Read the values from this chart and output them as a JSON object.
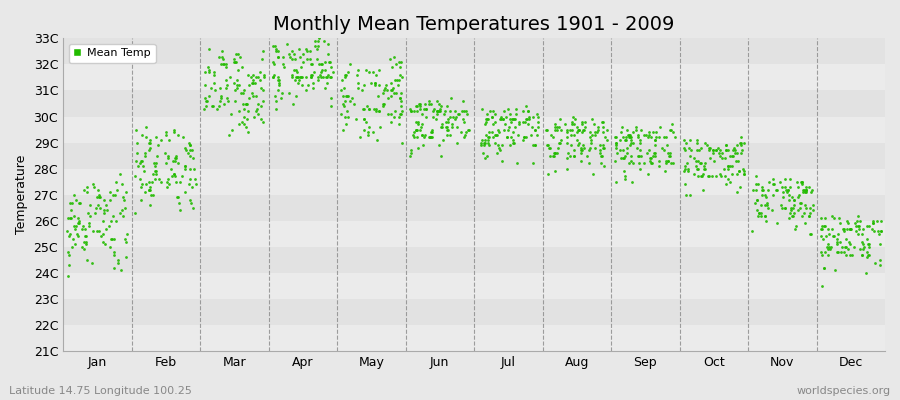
{
  "title": "Monthly Mean Temperatures 1901 - 2009",
  "ylabel": "Temperature",
  "xlabel_labels": [
    "Jan",
    "Feb",
    "Mar",
    "Apr",
    "May",
    "Jun",
    "Jul",
    "Aug",
    "Sep",
    "Oct",
    "Nov",
    "Dec"
  ],
  "ytick_labels": [
    "21C",
    "22C",
    "23C",
    "24C",
    "25C",
    "26C",
    "27C",
    "28C",
    "29C",
    "30C",
    "31C",
    "32C",
    "33C"
  ],
  "ytick_values": [
    21,
    22,
    23,
    24,
    25,
    26,
    27,
    28,
    29,
    30,
    31,
    32,
    33
  ],
  "legend_label": "Mean Temp",
  "dot_color": "#22bb00",
  "band_color_light": "#ebebeb",
  "band_color_dark": "#e0e0e0",
  "background_color": "#e8e8e8",
  "footnote_left": "Latitude 14.75 Longitude 100.25",
  "footnote_right": "worldspecies.org",
  "ylim": [
    21,
    33
  ],
  "title_fontsize": 14,
  "axis_fontsize": 9,
  "footnote_fontsize": 8,
  "monthly_mean_temps": {
    "Jan": [
      26.2,
      26.5,
      25.3,
      26.0,
      25.8,
      26.8,
      25.5,
      27.8,
      26.3,
      25.0,
      24.8,
      25.2,
      24.5,
      26.7,
      25.4,
      26.1,
      25.7,
      26.9,
      25.6,
      27.2,
      26.4,
      25.1,
      24.9,
      25.8,
      26.3,
      27.0,
      25.9,
      26.6,
      25.2,
      24.7,
      26.8,
      25.5,
      26.1,
      25.3,
      27.1,
      26.0,
      25.4,
      26.7,
      25.8,
      27.3,
      26.2,
      25.6,
      24.3,
      26.9,
      25.7,
      26.4,
      25.1,
      27.0,
      26.5,
      25.9,
      24.6,
      25.3,
      26.8,
      27.4,
      25.5,
      26.2,
      25.0,
      26.7,
      25.4,
      27.1,
      26.6,
      25.8,
      24.4,
      26.3,
      25.2,
      26.9,
      25.7,
      27.5,
      26.1,
      25.5,
      24.2,
      26.0,
      25.6,
      27.2,
      26.8,
      25.3,
      24.8,
      26.4,
      25.9,
      27.0,
      26.3,
      25.1,
      24.5,
      26.7,
      25.4,
      27.3,
      26.0,
      25.7,
      24.1,
      26.5,
      25.8,
      27.1,
      26.2,
      25.4,
      24.7,
      26.9,
      25.6,
      27.4,
      26.1,
      25.3,
      23.9,
      26.6,
      25.2,
      27.2,
      26.4,
      25.0,
      24.4,
      27.0
    ],
    "Feb": [
      27.5,
      28.2,
      27.0,
      28.5,
      27.3,
      28.8,
      27.8,
      29.0,
      28.1,
      27.4,
      26.8,
      27.6,
      27.1,
      28.9,
      27.9,
      28.3,
      27.2,
      29.1,
      28.0,
      28.6,
      27.7,
      28.2,
      27.5,
      28.7,
      27.4,
      29.2,
      28.4,
      28.1,
      27.3,
      26.9,
      28.5,
      27.6,
      28.0,
      27.2,
      29.3,
      28.2,
      27.8,
      29.0,
      28.3,
      29.4,
      28.1,
      27.5,
      26.7,
      28.8,
      27.9,
      28.6,
      27.4,
      29.1,
      28.5,
      27.7,
      26.6,
      27.5,
      28.9,
      29.5,
      27.8,
      28.4,
      27.3,
      28.7,
      27.6,
      29.2,
      28.6,
      28.0,
      26.9,
      28.3,
      27.5,
      29.0,
      27.7,
      29.6,
      28.2,
      27.6,
      26.5,
      28.1,
      27.8,
      29.3,
      28.7,
      27.4,
      27.0,
      28.4,
      28.1,
      29.1,
      28.5,
      27.3,
      26.8,
      28.7,
      27.6,
      29.4,
      28.2,
      27.9,
      26.4,
      28.5,
      28.0,
      29.2,
      28.3,
      27.6,
      27.1,
      28.9,
      27.7,
      29.5,
      28.3,
      27.5,
      26.3,
      28.6,
      27.4,
      29.3,
      28.4,
      27.2,
      26.7,
      29.0
    ],
    "Mar": [
      30.5,
      31.2,
      30.0,
      31.5,
      30.3,
      31.8,
      30.8,
      32.0,
      31.1,
      30.4,
      29.8,
      30.6,
      30.1,
      31.9,
      30.9,
      31.3,
      30.2,
      32.1,
      31.0,
      31.6,
      30.7,
      31.2,
      30.5,
      31.7,
      30.4,
      32.2,
      31.4,
      31.1,
      30.3,
      29.9,
      31.5,
      30.6,
      31.0,
      30.2,
      32.3,
      31.2,
      30.8,
      32.0,
      31.3,
      32.4,
      31.1,
      30.5,
      29.7,
      31.8,
      30.9,
      31.6,
      30.4,
      32.1,
      31.5,
      30.7,
      29.6,
      30.5,
      31.9,
      32.5,
      30.8,
      31.4,
      30.3,
      31.7,
      30.6,
      32.2,
      31.6,
      31.0,
      29.9,
      31.3,
      30.5,
      32.0,
      30.7,
      32.6,
      31.2,
      30.6,
      29.5,
      31.1,
      30.8,
      32.3,
      31.7,
      30.4,
      30.0,
      31.4,
      31.1,
      32.1,
      31.5,
      30.3,
      29.8,
      31.7,
      30.6,
      32.4,
      31.2,
      30.9,
      29.4,
      31.5,
      31.0,
      32.2,
      31.3,
      30.6,
      30.1,
      31.9,
      30.7,
      32.5,
      31.3,
      30.5,
      29.3,
      31.6,
      30.4,
      32.3,
      31.4,
      30.2,
      29.7,
      32.0
    ],
    "Apr": [
      31.5,
      32.2,
      31.0,
      32.5,
      31.3,
      32.8,
      31.8,
      33.0,
      32.1,
      31.4,
      30.8,
      31.6,
      31.1,
      32.9,
      31.9,
      32.3,
      31.2,
      31.5,
      32.0,
      32.6,
      31.7,
      32.2,
      31.5,
      32.7,
      31.4,
      31.5,
      32.4,
      32.1,
      31.3,
      30.9,
      32.5,
      31.6,
      32.0,
      31.2,
      31.5,
      32.2,
      31.8,
      32.0,
      32.3,
      31.5,
      32.1,
      31.5,
      30.7,
      32.8,
      31.9,
      32.6,
      31.4,
      31.5,
      32.5,
      31.7,
      30.6,
      31.5,
      32.9,
      31.5,
      31.8,
      32.4,
      31.3,
      32.7,
      31.6,
      31.5,
      32.6,
      32.0,
      30.9,
      32.3,
      31.5,
      32.0,
      31.7,
      31.5,
      32.2,
      31.6,
      30.5,
      32.1,
      31.8,
      31.5,
      32.7,
      31.4,
      31.0,
      32.4,
      32.1,
      31.5,
      32.5,
      31.3,
      30.8,
      32.7,
      31.6,
      31.5,
      32.2,
      31.9,
      30.4,
      32.5,
      32.0,
      31.5,
      32.3,
      31.6,
      31.1,
      32.9,
      31.7,
      31.5,
      32.3,
      31.5,
      30.3,
      32.6,
      31.4,
      31.5,
      32.4,
      31.2,
      30.7,
      32.0
    ],
    "May": [
      30.2,
      30.8,
      29.7,
      31.0,
      30.0,
      31.3,
      30.5,
      31.5,
      30.8,
      30.1,
      29.5,
      30.3,
      29.8,
      31.4,
      30.6,
      31.0,
      29.9,
      31.6,
      30.7,
      31.2,
      30.4,
      30.9,
      30.2,
      31.3,
      30.1,
      31.7,
      31.1,
      30.8,
      30.0,
      29.6,
      31.2,
      30.3,
      30.7,
      29.9,
      31.8,
      30.9,
      30.5,
      31.6,
      31.0,
      31.9,
      30.8,
      30.2,
      29.4,
      31.5,
      30.6,
      31.3,
      30.1,
      31.7,
      31.2,
      30.4,
      29.3,
      30.2,
      31.6,
      32.0,
      30.5,
      31.1,
      30.0,
      31.4,
      30.3,
      31.8,
      31.3,
      30.7,
      29.6,
      31.0,
      30.2,
      31.6,
      30.4,
      32.1,
      30.9,
      30.3,
      29.2,
      30.8,
      30.5,
      32.0,
      31.4,
      30.1,
      29.7,
      31.1,
      30.8,
      31.8,
      31.2,
      30.0,
      29.5,
      31.4,
      30.3,
      32.2,
      30.9,
      30.6,
      29.1,
      31.2,
      30.7,
      31.9,
      31.0,
      30.3,
      29.8,
      31.6,
      30.4,
      32.3,
      31.0,
      30.2,
      29.0,
      31.3,
      30.1,
      32.1,
      31.1,
      29.9,
      29.4,
      31.7
    ],
    "Jun": [
      29.5,
      29.8,
      28.9,
      30.2,
      29.3,
      30.5,
      29.8,
      30.0,
      29.6,
      29.0,
      28.5,
      29.4,
      29.1,
      30.1,
      29.9,
      30.3,
      29.2,
      30.2,
      30.0,
      30.4,
      29.7,
      30.1,
      29.5,
      30.3,
      29.4,
      30.2,
      30.2,
      29.9,
      29.3,
      29.2,
      30.4,
      29.6,
      30.0,
      29.5,
      30.2,
      30.1,
      29.8,
      30.2,
      30.2,
      29.3,
      30.1,
      29.5,
      28.9,
      30.5,
      29.9,
      30.3,
      29.4,
      30.2,
      30.4,
      29.7,
      28.8,
      29.5,
      30.4,
      29.2,
      29.8,
      30.2,
      29.3,
      30.3,
      29.6,
      30.2,
      30.5,
      30.0,
      29.5,
      30.2,
      29.5,
      30.2,
      29.7,
      29.2,
      30.2,
      29.6,
      28.7,
      30.1,
      29.8,
      29.2,
      30.6,
      29.4,
      29.3,
      30.3,
      30.1,
      30.2,
      30.5,
      29.3,
      29.4,
      30.5,
      29.6,
      29.2,
      30.2,
      29.9,
      28.6,
      30.5,
      30.0,
      30.2,
      30.3,
      29.6,
      29.5,
      30.6,
      29.7,
      29.2,
      30.3,
      29.5,
      28.5,
      30.6,
      29.3,
      29.2,
      30.4,
      29.2,
      29.6,
      30.7
    ],
    "Jul": [
      29.2,
      29.5,
      28.6,
      29.8,
      29.0,
      30.2,
      29.5,
      29.7,
      29.3,
      28.7,
      28.2,
      29.1,
      28.8,
      29.8,
      29.6,
      30.0,
      28.9,
      29.9,
      29.7,
      30.1,
      29.4,
      29.8,
      29.2,
      30.0,
      29.1,
      29.9,
      29.9,
      29.6,
      29.0,
      28.9,
      30.1,
      29.3,
      29.7,
      29.2,
      29.9,
      29.8,
      29.5,
      29.9,
      29.9,
      29.0,
      29.8,
      29.2,
      28.6,
      30.2,
      29.6,
      30.0,
      29.1,
      29.9,
      30.1,
      29.4,
      28.5,
      29.2,
      30.1,
      28.9,
      29.5,
      29.9,
      29.0,
      30.0,
      29.3,
      29.9,
      30.2,
      29.7,
      29.2,
      29.9,
      29.2,
      29.9,
      29.4,
      28.9,
      29.9,
      29.3,
      28.4,
      29.8,
      29.5,
      28.9,
      30.3,
      29.1,
      29.0,
      30.0,
      29.8,
      29.9,
      30.2,
      29.0,
      29.1,
      30.2,
      29.3,
      28.9,
      29.9,
      29.6,
      28.3,
      30.2,
      29.7,
      29.9,
      30.0,
      29.3,
      29.2,
      30.3,
      29.4,
      28.9,
      30.0,
      29.2,
      28.2,
      30.3,
      29.0,
      28.9,
      30.1,
      28.9,
      29.3,
      30.4
    ],
    "Aug": [
      28.8,
      29.0,
      28.2,
      29.4,
      28.6,
      29.7,
      29.1,
      29.3,
      28.9,
      28.3,
      27.8,
      28.7,
      28.4,
      29.4,
      29.2,
      29.6,
      28.5,
      29.5,
      29.3,
      29.7,
      29.0,
      29.4,
      28.8,
      29.6,
      28.7,
      29.5,
      29.5,
      29.2,
      28.6,
      28.5,
      29.7,
      28.9,
      29.3,
      28.8,
      29.5,
      29.4,
      29.1,
      29.5,
      29.5,
      28.6,
      29.4,
      28.8,
      28.2,
      29.8,
      29.2,
      29.6,
      28.7,
      29.5,
      29.7,
      29.0,
      28.1,
      28.8,
      29.7,
      28.5,
      29.1,
      29.5,
      28.6,
      29.6,
      28.9,
      29.5,
      29.8,
      29.3,
      28.8,
      29.5,
      28.8,
      29.5,
      29.0,
      28.5,
      29.5,
      28.9,
      28.0,
      29.4,
      29.1,
      28.5,
      29.9,
      28.7,
      28.6,
      29.6,
      29.4,
      29.5,
      29.8,
      28.6,
      28.7,
      29.8,
      28.9,
      28.5,
      29.5,
      29.2,
      27.9,
      29.8,
      29.3,
      29.5,
      29.6,
      28.9,
      28.8,
      29.9,
      29.0,
      28.5,
      29.6,
      28.8,
      27.8,
      29.9,
      28.6,
      28.5,
      29.7,
      28.5,
      28.9,
      30.0
    ],
    "Sep": [
      28.5,
      28.7,
      27.9,
      29.1,
      28.3,
      29.4,
      28.8,
      29.0,
      28.6,
      28.0,
      27.5,
      28.4,
      28.1,
      29.1,
      28.9,
      29.3,
      28.2,
      29.2,
      29.0,
      29.4,
      28.7,
      29.1,
      28.5,
      29.3,
      28.4,
      29.2,
      29.2,
      28.9,
      28.3,
      28.2,
      29.4,
      28.6,
      29.0,
      28.5,
      29.2,
      29.1,
      28.8,
      29.2,
      29.2,
      28.3,
      29.1,
      28.5,
      27.9,
      29.5,
      28.9,
      29.3,
      28.4,
      29.2,
      29.4,
      28.7,
      27.8,
      28.5,
      29.4,
      28.2,
      28.8,
      29.2,
      28.3,
      29.3,
      28.6,
      29.2,
      29.5,
      29.0,
      28.5,
      29.2,
      28.5,
      29.2,
      28.7,
      28.2,
      29.2,
      28.6,
      27.7,
      29.1,
      28.8,
      28.2,
      29.6,
      28.4,
      28.3,
      29.3,
      29.1,
      29.2,
      29.5,
      28.3,
      28.4,
      29.5,
      28.6,
      28.2,
      29.2,
      28.9,
      27.6,
      29.5,
      29.0,
      29.2,
      29.3,
      28.6,
      28.5,
      29.6,
      28.7,
      28.2,
      29.3,
      28.5,
      27.5,
      29.6,
      28.3,
      28.2,
      29.4,
      28.2,
      28.6,
      29.7
    ],
    "Oct": [
      28.0,
      28.3,
      27.4,
      28.7,
      27.8,
      29.0,
      28.3,
      28.5,
      28.1,
      27.5,
      27.0,
      27.9,
      27.6,
      28.6,
      28.4,
      28.8,
      27.7,
      28.7,
      28.5,
      28.9,
      28.2,
      28.6,
      28.0,
      28.8,
      27.9,
      28.7,
      28.7,
      28.4,
      27.8,
      27.7,
      28.9,
      28.1,
      28.5,
      28.0,
      28.7,
      28.6,
      28.3,
      28.7,
      28.7,
      27.8,
      28.6,
      28.0,
      27.4,
      29.0,
      28.4,
      28.8,
      27.9,
      28.7,
      28.9,
      28.2,
      27.3,
      28.0,
      28.9,
      27.7,
      28.3,
      28.7,
      27.8,
      28.8,
      28.1,
      28.7,
      29.0,
      28.5,
      28.0,
      28.7,
      28.0,
      28.7,
      28.2,
      27.7,
      28.7,
      28.1,
      27.2,
      28.6,
      28.3,
      27.7,
      29.1,
      27.9,
      27.8,
      28.8,
      28.6,
      28.7,
      29.0,
      27.8,
      27.9,
      29.0,
      28.1,
      27.7,
      28.7,
      28.4,
      27.1,
      29.0,
      28.5,
      28.7,
      28.8,
      28.1,
      28.0,
      29.1,
      28.2,
      27.7,
      28.8,
      28.0,
      27.0,
      29.1,
      27.8,
      27.7,
      28.9,
      27.7,
      28.1,
      29.2
    ],
    "Nov": [
      26.5,
      26.8,
      25.9,
      27.2,
      26.3,
      27.5,
      26.8,
      27.0,
      26.6,
      26.0,
      25.5,
      26.4,
      26.1,
      27.1,
      26.9,
      27.3,
      26.2,
      27.2,
      27.0,
      27.4,
      26.7,
      27.1,
      26.5,
      27.3,
      26.4,
      27.2,
      27.2,
      26.9,
      26.3,
      26.2,
      27.4,
      26.6,
      27.0,
      26.5,
      27.2,
      27.1,
      26.8,
      27.2,
      27.2,
      26.3,
      27.1,
      26.5,
      25.9,
      27.5,
      26.9,
      27.3,
      26.4,
      27.2,
      27.4,
      26.7,
      25.8,
      26.5,
      27.4,
      26.2,
      26.8,
      27.2,
      26.3,
      27.3,
      26.6,
      27.2,
      27.5,
      27.0,
      26.5,
      27.2,
      26.5,
      27.2,
      26.7,
      26.2,
      27.2,
      26.6,
      25.7,
      27.1,
      26.8,
      26.2,
      27.6,
      26.4,
      26.3,
      27.3,
      27.1,
      27.2,
      27.5,
      26.3,
      26.4,
      27.5,
      26.6,
      26.2,
      27.2,
      26.9,
      25.6,
      27.5,
      27.0,
      27.2,
      27.3,
      26.6,
      26.5,
      27.6,
      26.7,
      26.2,
      27.3,
      26.5,
      25.5,
      27.6,
      26.3,
      26.2,
      27.4,
      26.2,
      26.6,
      27.7
    ],
    "Dec": [
      25.5,
      25.0,
      24.2,
      25.8,
      24.8,
      26.2,
      25.3,
      25.6,
      25.1,
      24.5,
      24.0,
      24.9,
      24.6,
      25.7,
      25.4,
      25.9,
      24.7,
      25.8,
      25.5,
      26.0,
      25.2,
      25.6,
      25.0,
      25.9,
      24.9,
      25.8,
      25.7,
      25.4,
      24.8,
      24.7,
      26.0,
      25.1,
      25.5,
      25.0,
      25.7,
      25.6,
      25.3,
      25.7,
      25.7,
      24.8,
      25.6,
      25.0,
      24.4,
      26.1,
      25.4,
      25.8,
      24.9,
      25.7,
      25.9,
      25.2,
      24.3,
      25.0,
      25.9,
      24.7,
      25.3,
      25.7,
      24.8,
      25.8,
      25.1,
      25.7,
      26.0,
      25.5,
      25.0,
      25.7,
      25.0,
      25.7,
      25.2,
      24.7,
      25.7,
      25.1,
      24.2,
      25.6,
      25.3,
      24.7,
      26.1,
      24.9,
      24.8,
      25.8,
      25.6,
      25.7,
      26.0,
      24.8,
      24.9,
      26.0,
      25.1,
      24.7,
      25.7,
      25.4,
      24.1,
      26.0,
      25.5,
      25.7,
      25.8,
      25.1,
      25.0,
      26.1,
      25.2,
      24.7,
      25.8,
      25.0,
      23.5,
      26.1,
      24.8,
      24.7,
      25.9,
      24.7,
      25.1,
      26.2
    ]
  }
}
